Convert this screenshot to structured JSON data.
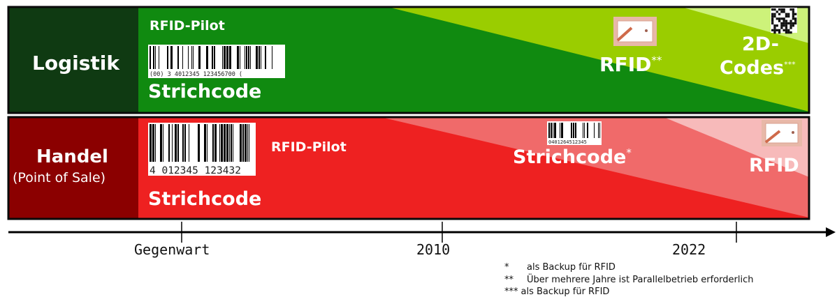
{
  "colors": {
    "logistik_label_bg": "#0f3a12",
    "logistik_main": "#108a10",
    "logistik_mid": "#9acd00",
    "logistik_light": "#cdf27a",
    "handel_label_bg": "#8b0000",
    "handel_main": "#ee2121",
    "handel_mid": "#f06a6a",
    "handel_light": "#f7baba",
    "border": "#0a0a0a"
  },
  "rows": {
    "logistik": {
      "label": "Logistik",
      "pilot": "RFID-Pilot",
      "strichcode": "Strichcode",
      "barcode_digits": "(00) 3 4012345 123456700 (",
      "rfid": "RFID",
      "rfid_mark": "**",
      "codes2d_line1": "2D-",
      "codes2d_line2": "Codes",
      "codes2d_mark": "***"
    },
    "handel": {
      "label_line1": "Handel",
      "label_line2": "(Point of Sale)",
      "pilot": "RFID-Pilot",
      "strichcode_main": "Strichcode",
      "barcode_digits": "4 012345 123432",
      "strichcode_mid": "Strichcode",
      "strichcode_mark": "*",
      "small_barcode_digits": "0401264512345",
      "rfid": "RFID"
    }
  },
  "timeline": {
    "ticks": [
      "Gegenwart",
      "2010",
      "2022"
    ]
  },
  "footnotes": [
    {
      "mark": "*",
      "text": "als Backup für RFID"
    },
    {
      "mark": "**",
      "text": "Über mehrere Jahre ist Parallelbetrieb erforderlich"
    },
    {
      "mark": "***",
      "text": "als Backup für RFID"
    }
  ],
  "icons": [
    "barcode-icon",
    "rfid-tag-icon",
    "qr-code-icon",
    "timeline-arrow-icon"
  ]
}
